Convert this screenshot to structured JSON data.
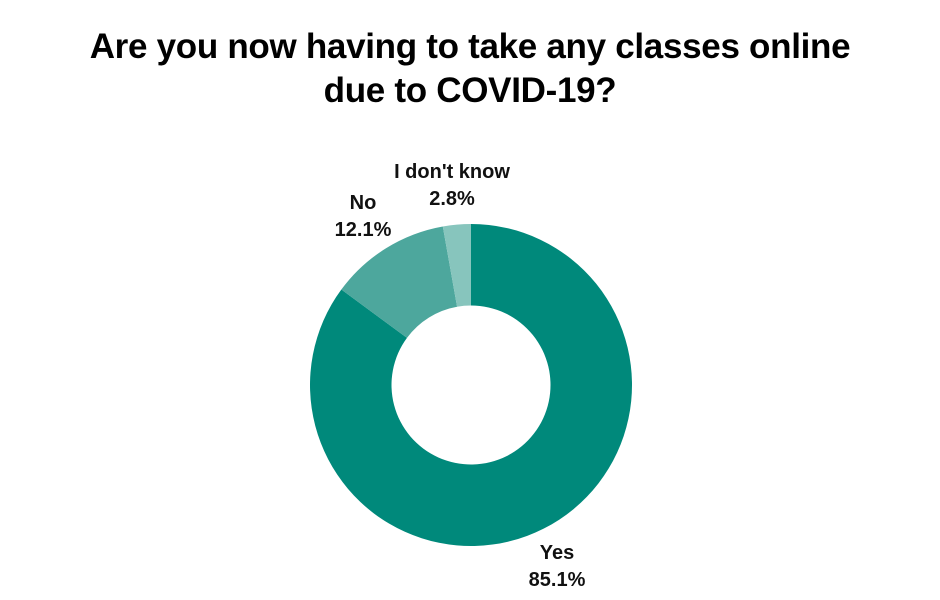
{
  "title": {
    "text": "Are you now having to take any classes online due to COVID-19?",
    "line1": "Are you now having to take any classes online",
    "line2": "due to COVID-19?"
  },
  "chart_data": {
    "type": "pie",
    "style": "donut",
    "title": "Are you now having to take any classes online due to COVID-19?",
    "categories": [
      "Yes",
      "No",
      "I don't know"
    ],
    "values": [
      85.1,
      12.1,
      2.8
    ],
    "unit": "%",
    "colors": [
      "#00897B",
      "#4DA79D",
      "#87C5BD"
    ],
    "start_angle_deg": 0,
    "direction": "clockwise",
    "legend": "none",
    "background_color": "#ffffff",
    "label_text_color": "#111111",
    "label_format": "category name above percent value"
  },
  "slice_labels": [
    {
      "name": "Yes",
      "value": "85.1%"
    },
    {
      "name": "No",
      "value": "12.1%"
    },
    {
      "name": "I don't know",
      "value": "2.8%"
    }
  ]
}
